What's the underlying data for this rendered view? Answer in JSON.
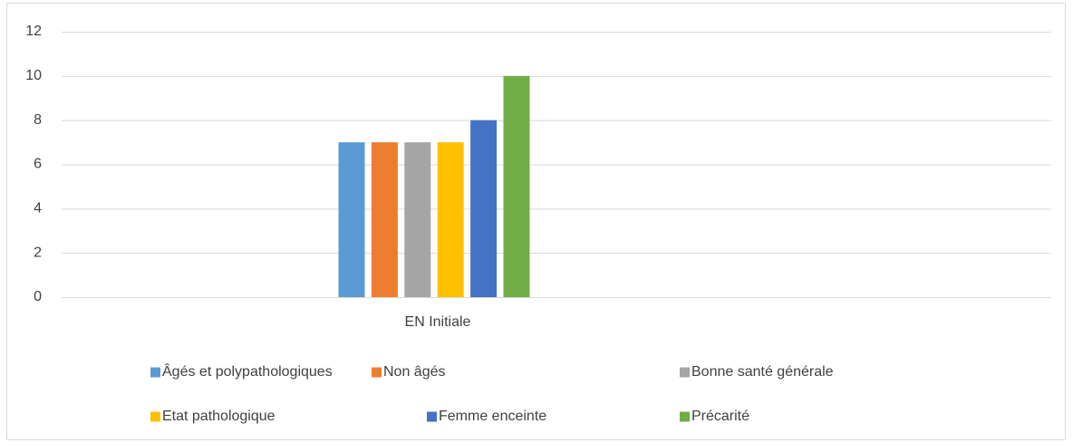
{
  "chart_data": {
    "type": "bar",
    "categories": [
      "EN Initiale"
    ],
    "series": [
      {
        "name": "Âgés et polypathologiques",
        "color": "#5b9bd5",
        "values": [
          7
        ]
      },
      {
        "name": "Non âgés",
        "color": "#ed7d31",
        "values": [
          7
        ]
      },
      {
        "name": "Bonne santé générale",
        "color": "#a5a5a5",
        "values": [
          7
        ]
      },
      {
        "name": "Etat pathologique",
        "color": "#ffc000",
        "values": [
          7
        ]
      },
      {
        "name": "Femme enceinte",
        "color": "#4472c4",
        "values": [
          8
        ]
      },
      {
        "name": "Précarité",
        "color": "#70ad47",
        "values": [
          10
        ]
      }
    ],
    "ylim": [
      0,
      12
    ],
    "yticks": [
      0,
      2,
      4,
      6,
      8,
      10,
      12
    ],
    "grid": true,
    "legend": "bottom"
  }
}
